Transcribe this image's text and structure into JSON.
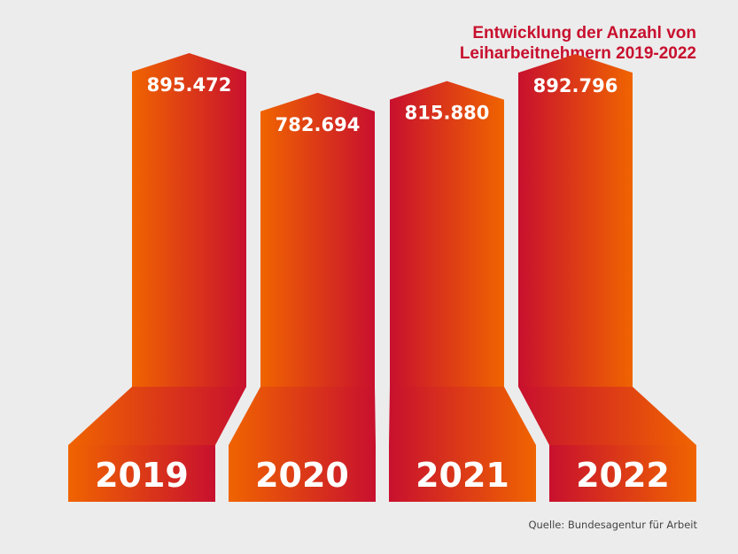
{
  "title_line1": "Entwicklung der Anzahl von",
  "title_line2": "Leiharbeitnehmern 2019-2022",
  "source": "Quelle: Bundesagentur für Arbeit",
  "colors": {
    "orange": "#f06400",
    "red": "#c8102e",
    "background": "#ececec"
  },
  "chart_data": {
    "type": "bar",
    "title": "Entwicklung der Anzahl von Leiharbeitnehmern 2019-2022",
    "categories": [
      "2019",
      "2020",
      "2021",
      "2022"
    ],
    "values": [
      895472,
      782694,
      815880,
      892796
    ],
    "value_labels": [
      "895.472",
      "782.694",
      "815.880",
      "892.796"
    ],
    "xlabel": "",
    "ylabel": "",
    "grid": false,
    "legend": "none"
  }
}
